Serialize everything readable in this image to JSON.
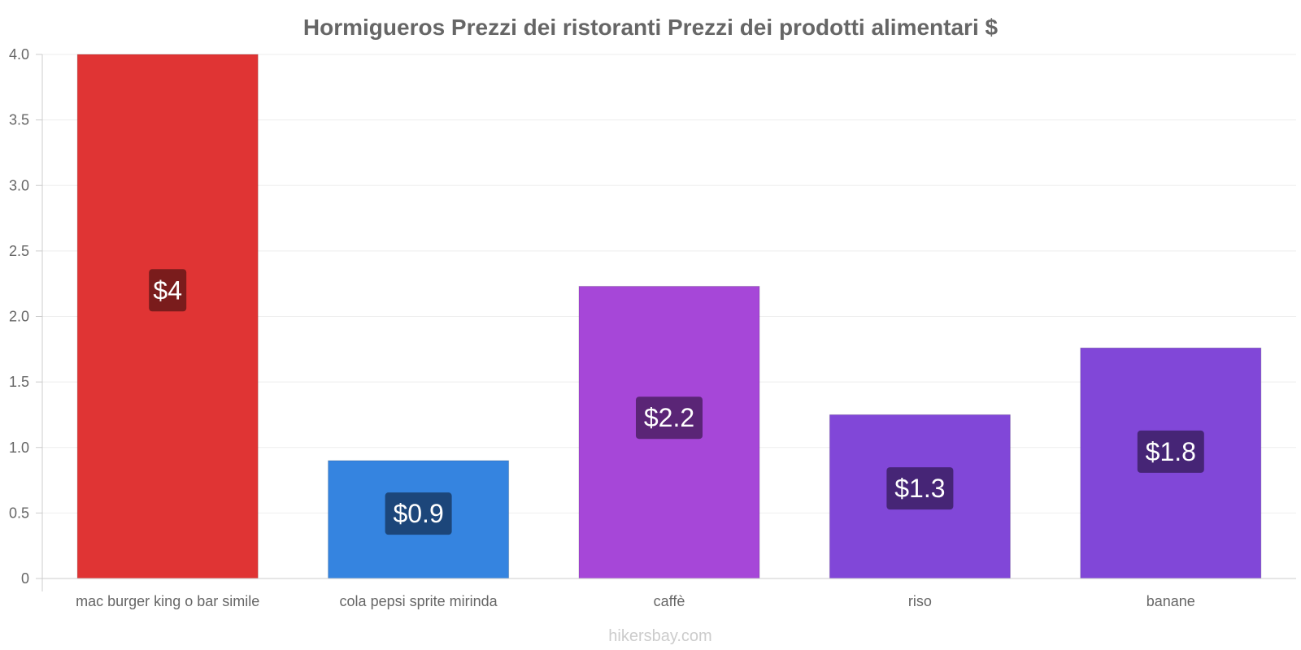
{
  "chart_data": {
    "type": "bar",
    "title": "Hormigueros Prezzi dei ristoranti Prezzi dei prodotti alimentari $",
    "categories": [
      "mac burger king o bar simile",
      "cola pepsi sprite mirinda",
      "caffè",
      "riso",
      "banane"
    ],
    "values": [
      4.0,
      0.9,
      2.23,
      1.25,
      1.76
    ],
    "data_labels": [
      "$4",
      "$0.9",
      "$2.2",
      "$1.3",
      "$1.8"
    ],
    "colors": [
      "#e03434",
      "#3584e0",
      "#a647d8",
      "#8147d8",
      "#8147d8"
    ],
    "label_colors": [
      "#7a1c1c",
      "#1c467a",
      "#5a2576",
      "#462576",
      "#462576"
    ],
    "ylim": [
      0,
      4.0
    ],
    "yticks": [
      0,
      0.5,
      1.0,
      1.5,
      2.0,
      2.5,
      3.0,
      3.5,
      4.0
    ],
    "ytick_labels": [
      "0",
      "0.5",
      "1.0",
      "1.5",
      "2.0",
      "2.5",
      "3.0",
      "3.5",
      "4.0"
    ],
    "xlabel": "",
    "ylabel": "",
    "grid": true,
    "legend": "none"
  },
  "watermark": "hikersbay.com"
}
